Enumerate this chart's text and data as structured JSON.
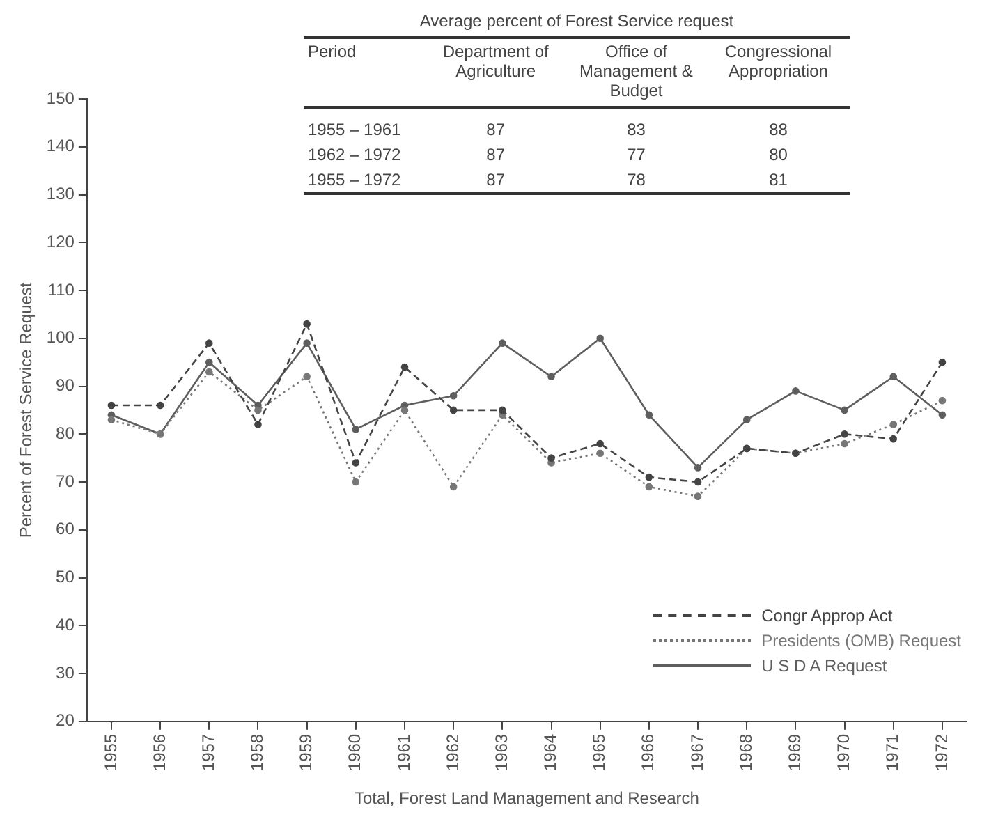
{
  "chart_data": {
    "type": "line",
    "xlabel": "Total, Forest Land Management and Research",
    "ylabel": "Percent of Forest Service Request",
    "categories": [
      "1955",
      "1956",
      "1957",
      "1958",
      "1959",
      "1960",
      "1961",
      "1962",
      "1963",
      "1964",
      "1965",
      "1966",
      "1967",
      "1968",
      "1969",
      "1970",
      "1971",
      "1972"
    ],
    "series": [
      {
        "name": "Congr  Approp  Act",
        "color": "#444444",
        "line_style": "dashed",
        "values": [
          86,
          86,
          99,
          82,
          103,
          74,
          94,
          85,
          85,
          75,
          78,
          71,
          70,
          77,
          76,
          80,
          79,
          95
        ]
      },
      {
        "name": "Presidents (OMB) Request",
        "color": "#777777",
        "line_style": "dotted",
        "values": [
          83,
          80,
          93,
          85,
          92,
          70,
          85,
          69,
          84,
          74,
          76,
          69,
          67,
          77,
          76,
          78,
          82,
          87
        ]
      },
      {
        "name": "U S D A  Request",
        "color": "#5e5e5e",
        "line_style": "solid",
        "values": [
          84,
          80,
          95,
          86,
          99,
          81,
          86,
          88,
          99,
          92,
          100,
          84,
          73,
          83,
          89,
          85,
          92,
          84
        ]
      }
    ],
    "ylim": [
      20,
      150
    ],
    "yticks": [
      20,
      30,
      40,
      50,
      60,
      70,
      80,
      90,
      100,
      110,
      120,
      130,
      140,
      150
    ],
    "grid": false,
    "legend": "bottom right",
    "marker": "circle",
    "annotations": [
      "Average percent of Forest Service request",
      "Period",
      "Department of Agriculture",
      "Office of Management & Budget",
      "Congressional Appropriation",
      "1955 – 1961",
      "87",
      "83",
      "88",
      "1962 – 1972",
      "87",
      "77",
      "80",
      "1955 – 1972",
      "87",
      "78",
      "81"
    ]
  }
}
